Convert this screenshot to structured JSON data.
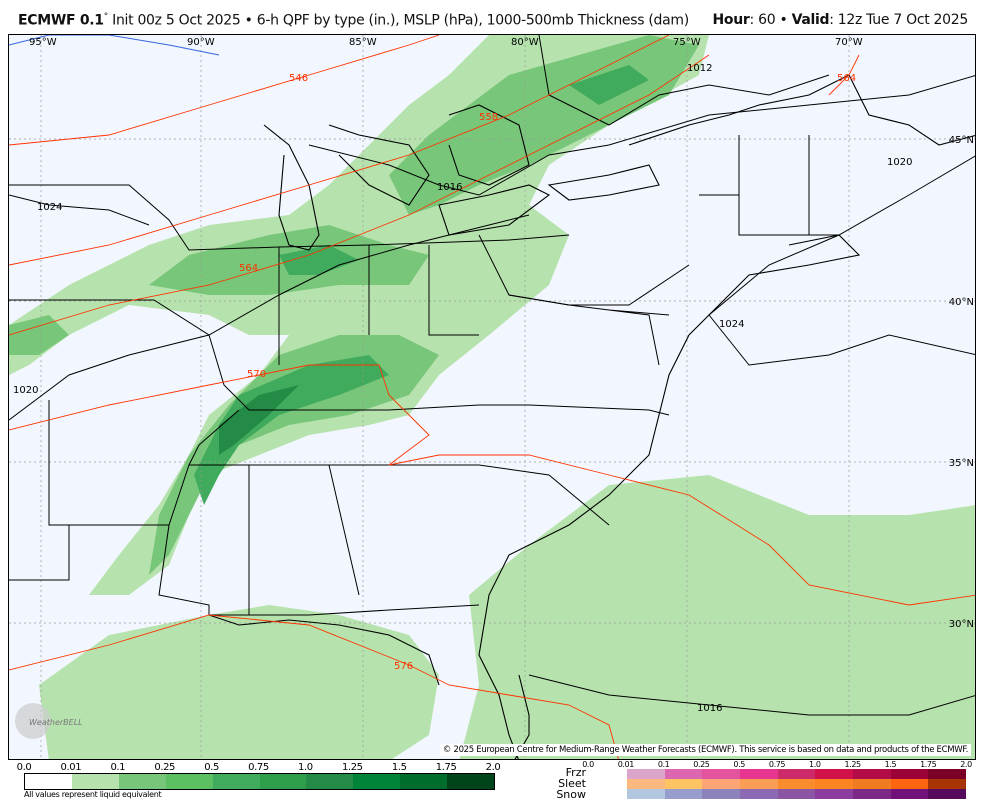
{
  "header": {
    "model": "ECMWF 0.1",
    "degree": "°",
    "desc": " Init 00z 5 Oct 2025 • 6-h QPF by type (in.), MSLP (hPa), 1000-500mb Thickness (dam)",
    "hour_label": "Hour",
    "hour_value": ": 60 • ",
    "valid_label": "Valid",
    "valid_value": ": 12z Tue 7 Oct 2025"
  },
  "map": {
    "lon_labels": [
      "95°W",
      "90°W",
      "85°W",
      "80°W",
      "75°W",
      "70°W"
    ],
    "lat_labels": [
      "45°N",
      "40°N",
      "35°N",
      "30°N"
    ],
    "thickness_labels": [
      "546",
      "558",
      "564",
      "570",
      "576",
      "564"
    ],
    "isobar_labels": [
      "1012",
      "1016",
      "1020",
      "1024",
      "1020",
      "1024",
      "1016"
    ],
    "copyright": "© 2025 European Centre for Medium-Range Weather Forecasts (ECMWF). This service is based on data and products of the ECMWF.",
    "logo_text": "WeatherBELL"
  },
  "legend": {
    "qpf_ticks": [
      "0.0",
      "0.01",
      "0.1",
      "0.25",
      "0.5",
      "0.75",
      "1.0",
      "1.25",
      "1.5",
      "1.75",
      "2.0"
    ],
    "qpf_colors": [
      "#ffffff",
      "#b6e3ad",
      "#78c679",
      "#5cbf62",
      "#41ab5d",
      "#2f9e4a",
      "#238b45",
      "#00843a",
      "#006d2c",
      "#005a20",
      "#00441b"
    ],
    "note": "All values represent liquid equivalent",
    "ptype_ticks": [
      "0.0",
      "0.01",
      "0.1",
      "0.25",
      "0.5",
      "0.75",
      "1.0",
      "1.25",
      "1.5",
      "1.75",
      "2.0"
    ],
    "ptypes": [
      {
        "name": "Frzr",
        "colors": [
          "#dca6cc",
          "#dd66b1",
          "#e4539e",
          "#e8358f",
          "#cc2a69",
          "#d11149",
          "#b10c48",
          "#9c0038",
          "#7b0025"
        ]
      },
      {
        "name": "Sleet",
        "colors": [
          "#fcb97f",
          "#fec362",
          "#fda577",
          "#fa9e55",
          "#fb8c2e",
          "#fc8421",
          "#f07b21",
          "#fd6510",
          "#a83404"
        ]
      },
      {
        "name": "Snow",
        "colors": [
          "#b2c6e0",
          "#979ecd",
          "#8c82bc",
          "#8c69b3",
          "#8a55a2",
          "#8a3d9e",
          "#7c2886",
          "#70127a",
          "#560a5c"
        ]
      }
    ]
  }
}
